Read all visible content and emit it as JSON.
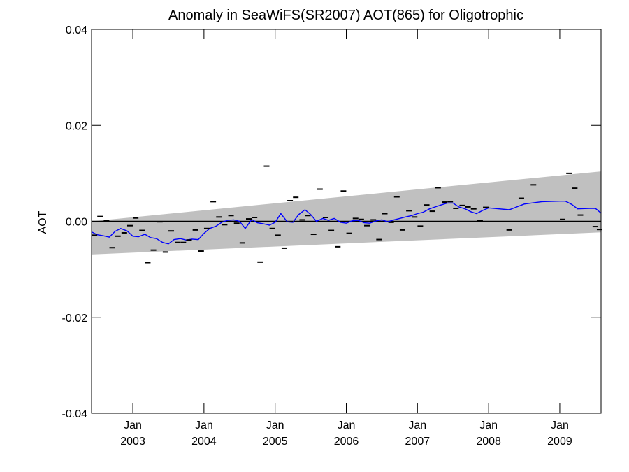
{
  "chart_data": {
    "type": "scatter",
    "title": "Anomaly in SeaWiFS(SR2007) AOT(865) for Oligotrophic",
    "ylabel": "AOT",
    "xlabel": "",
    "xlim": [
      2002.42,
      2009.58
    ],
    "ylim": [
      -0.04,
      0.04
    ],
    "x_ticks": [
      {
        "x": 2003.0,
        "month": "Jan",
        "year": "2003"
      },
      {
        "x": 2004.0,
        "month": "Jan",
        "year": "2004"
      },
      {
        "x": 2005.0,
        "month": "Jan",
        "year": "2005"
      },
      {
        "x": 2006.0,
        "month": "Jan",
        "year": "2006"
      },
      {
        "x": 2007.0,
        "month": "Jan",
        "year": "2007"
      },
      {
        "x": 2008.0,
        "month": "Jan",
        "year": "2008"
      },
      {
        "x": 2009.0,
        "month": "Jan",
        "year": "2009"
      }
    ],
    "y_ticks": [
      {
        "value": 0.04,
        "label": "0.04"
      },
      {
        "value": 0.02,
        "label": "0.02"
      },
      {
        "value": 0.0,
        "label": "0.00"
      },
      {
        "value": -0.02,
        "label": "-0.02"
      },
      {
        "value": -0.04,
        "label": "-0.04"
      }
    ],
    "zero_line": 0.0,
    "uncertainty_band": {
      "x": [
        2002.42,
        2009.58
      ],
      "upper": [
        0.0,
        0.0104
      ],
      "lower": [
        -0.0069,
        -0.0023
      ],
      "color": "#c0c0c0"
    },
    "series": [
      {
        "type": "markers",
        "color": "#000000",
        "x": [
          2002.46,
          2002.54,
          2002.63,
          2002.71,
          2002.79,
          2002.88,
          2002.96,
          2003.04,
          2003.13,
          2003.21,
          2003.29,
          2003.38,
          2003.46,
          2003.54,
          2003.63,
          2003.71,
          2003.79,
          2003.88,
          2003.96,
          2004.04,
          2004.13,
          2004.21,
          2004.29,
          2004.38,
          2004.46,
          2004.54,
          2004.63,
          2004.71,
          2004.79,
          2004.88,
          2004.96,
          2005.04,
          2005.13,
          2005.21,
          2005.29,
          2005.38,
          2005.46,
          2005.54,
          2005.63,
          2005.71,
          2005.79,
          2005.88,
          2005.96,
          2006.04,
          2006.13,
          2006.21,
          2006.29,
          2006.38,
          2006.46,
          2006.54,
          2006.63,
          2006.71,
          2006.79,
          2006.88,
          2006.96,
          2007.04,
          2007.13,
          2007.21,
          2007.29,
          2007.38,
          2007.46,
          2007.54,
          2007.63,
          2007.71,
          2007.79,
          2007.88,
          2007.96,
          2008.29,
          2008.46,
          2008.63,
          2009.04,
          2009.13,
          2009.21,
          2009.29,
          2009.5,
          2009.56
        ],
        "y": [
          -0.0029,
          0.001,
          0.0002,
          -0.0055,
          -0.0031,
          -0.0024,
          -0.0009,
          0.0007,
          -0.0019,
          -0.0086,
          -0.006,
          -0.0001,
          -0.0064,
          -0.002,
          -0.0044,
          -0.0044,
          -0.0039,
          -0.0018,
          -0.0062,
          -0.0015,
          0.0041,
          0.0009,
          -0.0007,
          0.0012,
          -0.0004,
          -0.0045,
          0.0005,
          0.0008,
          -0.0085,
          0.0115,
          -0.0015,
          -0.0029,
          -0.0056,
          0.0043,
          0.005,
          0.0003,
          0.0012,
          -0.0027,
          0.0067,
          0.0008,
          -0.0019,
          -0.0053,
          0.0063,
          -0.0025,
          0.0006,
          0.0004,
          -0.0009,
          0.0003,
          -0.0038,
          0.0016,
          -0.0002,
          0.0051,
          -0.0018,
          0.0022,
          0.0009,
          -0.001,
          0.0034,
          0.0021,
          0.007,
          0.004,
          0.0041,
          0.0027,
          0.0033,
          0.003,
          0.0026,
          0.0001,
          0.0029,
          -0.0018,
          0.0048,
          0.0076,
          0.0004,
          0.01,
          0.0069,
          0.0013,
          -0.0011,
          -0.0017
        ]
      },
      {
        "type": "line",
        "color": "#0000ff",
        "x": [
          2002.42,
          2002.5,
          2002.58,
          2002.67,
          2002.75,
          2002.83,
          2002.92,
          2003.0,
          2003.08,
          2003.17,
          2003.25,
          2003.33,
          2003.42,
          2003.5,
          2003.58,
          2003.67,
          2003.75,
          2003.83,
          2003.92,
          2004.0,
          2004.08,
          2004.17,
          2004.25,
          2004.33,
          2004.42,
          2004.5,
          2004.58,
          2004.67,
          2004.75,
          2004.83,
          2004.92,
          2005.0,
          2005.08,
          2005.17,
          2005.25,
          2005.33,
          2005.42,
          2005.5,
          2005.58,
          2005.67,
          2005.75,
          2005.83,
          2005.92,
          2006.0,
          2006.08,
          2006.17,
          2006.25,
          2006.33,
          2006.42,
          2006.5,
          2006.58,
          2006.67,
          2006.75,
          2006.83,
          2006.92,
          2007.0,
          2007.08,
          2007.17,
          2007.25,
          2007.33,
          2007.42,
          2007.5,
          2007.58,
          2007.67,
          2007.75,
          2007.83,
          2007.92,
          2008.0,
          2008.29,
          2008.5,
          2008.75,
          2009.0,
          2009.08,
          2009.17,
          2009.25,
          2009.42,
          2009.5,
          2009.58
        ],
        "y": [
          -0.0022,
          -0.0028,
          -0.003,
          -0.0033,
          -0.0021,
          -0.0015,
          -0.002,
          -0.0031,
          -0.0032,
          -0.0027,
          -0.0034,
          -0.0036,
          -0.0044,
          -0.0047,
          -0.0038,
          -0.0036,
          -0.0039,
          -0.0037,
          -0.0038,
          -0.0025,
          -0.0015,
          -0.001,
          -0.0002,
          0.0002,
          0.0003,
          0.0,
          -0.0015,
          0.0004,
          -0.0003,
          -0.0005,
          -0.0008,
          -0.0002,
          0.0016,
          -0.0001,
          -0.0002,
          0.0014,
          0.0024,
          0.0014,
          0.0,
          0.0006,
          0.0002,
          0.0006,
          -0.0002,
          -0.0004,
          0.0001,
          0.0002,
          -0.0003,
          -0.0004,
          0.0001,
          0.0003,
          -0.0001,
          0.0003,
          0.0006,
          0.0009,
          0.0012,
          0.0016,
          0.0019,
          0.0026,
          0.003,
          0.0034,
          0.0038,
          0.0038,
          0.003,
          0.0026,
          0.002,
          0.0016,
          0.0023,
          0.0028,
          0.0024,
          0.0036,
          0.0041,
          0.0042,
          0.0042,
          0.0035,
          0.0026,
          0.0027,
          0.0027,
          0.0017
        ]
      }
    ],
    "grid": false,
    "legend": "none"
  }
}
